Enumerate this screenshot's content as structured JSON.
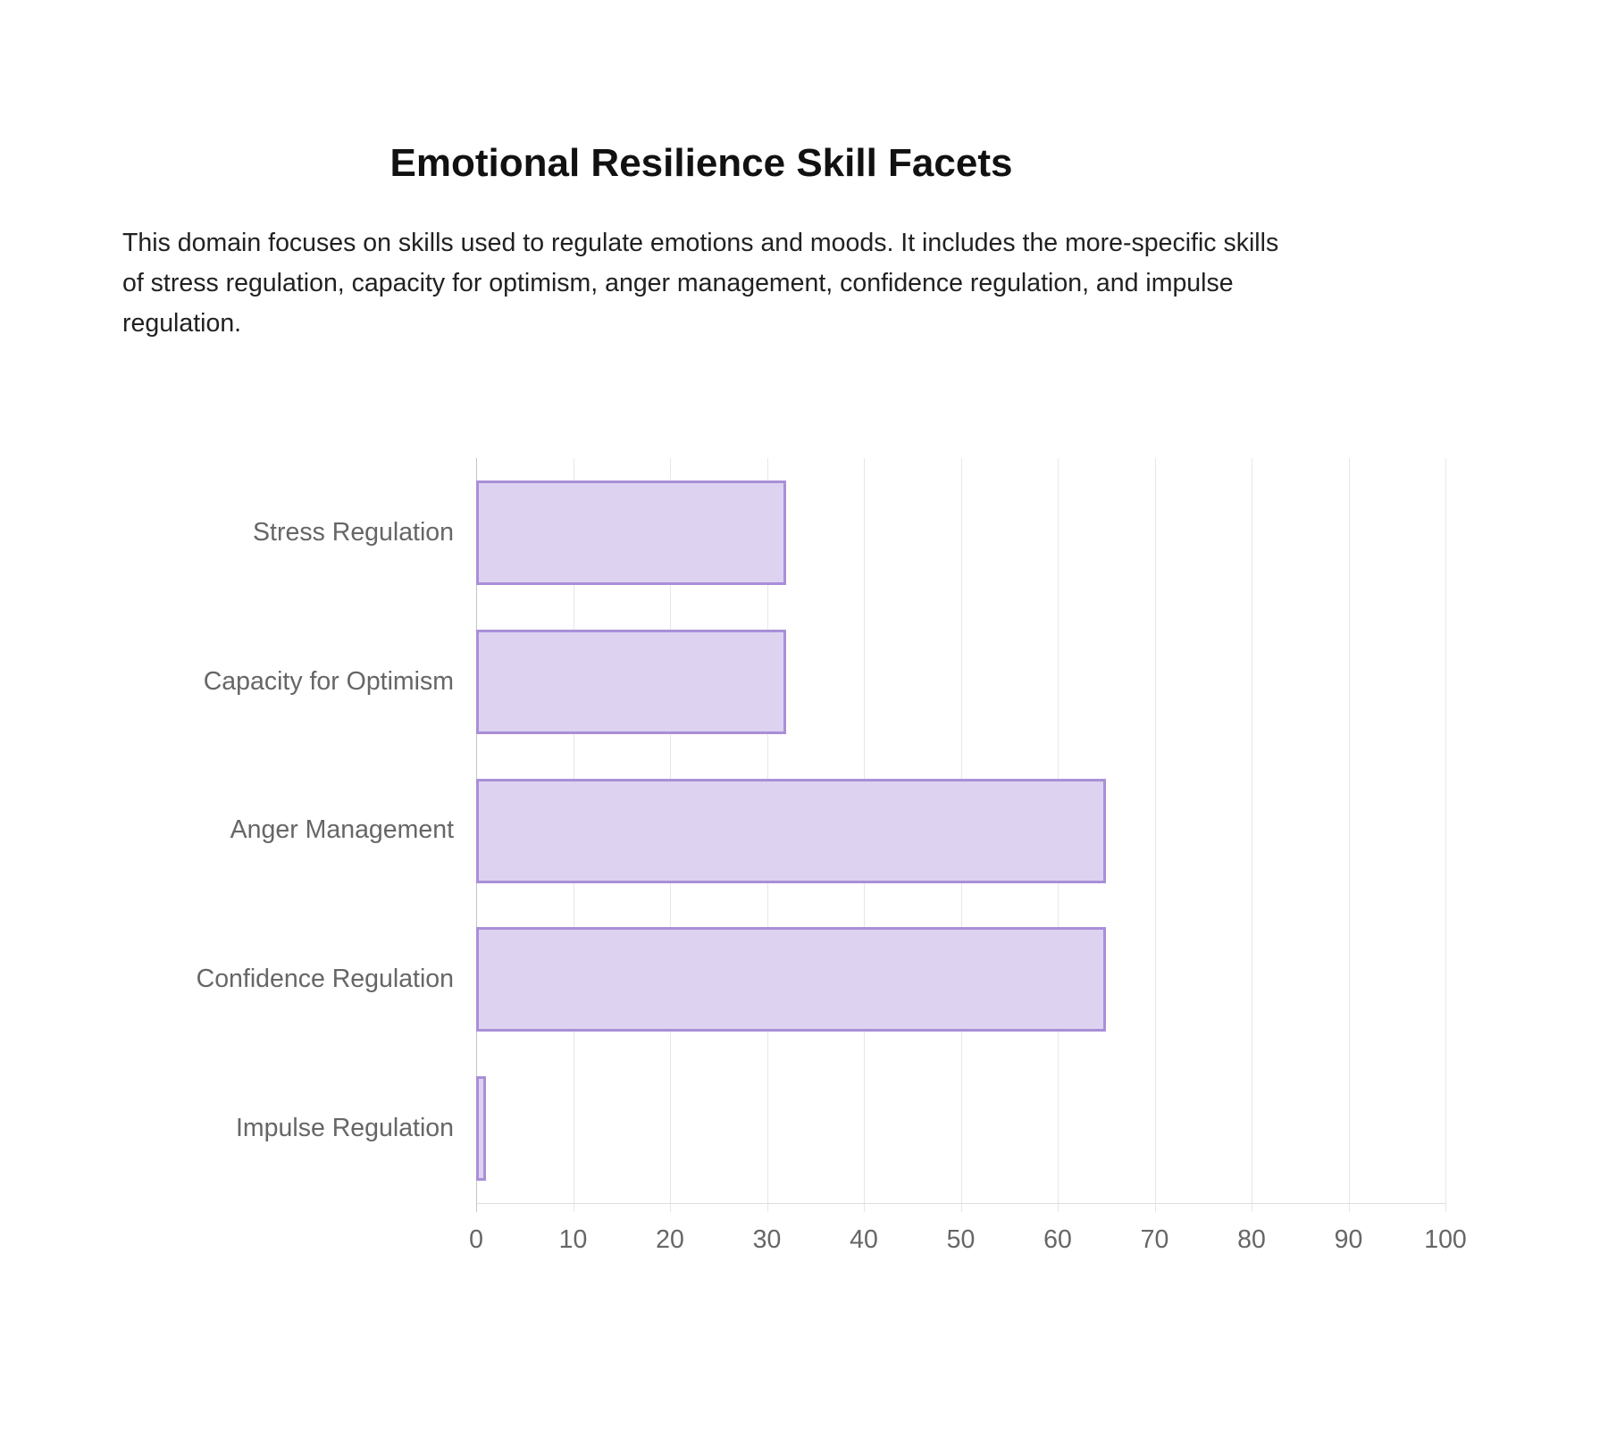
{
  "title": "Emotional Resilience Skill Facets",
  "description": "This domain focuses on skills used to regulate emotions and moods. It includes the more-specific skills of stress regulation, capacity for optimism, anger management, confidence regulation, and impulse regulation.",
  "chart_data": {
    "type": "bar",
    "orientation": "horizontal",
    "title": "Emotional Resilience Skill Facets",
    "categories": [
      "Stress Regulation",
      "Capacity for Optimism",
      "Anger Management",
      "Confidence Regulation",
      "Impulse Regulation"
    ],
    "values": [
      32,
      32,
      65,
      65,
      1
    ],
    "xlabel": "",
    "ylabel": "",
    "xlim": [
      0,
      100
    ],
    "x_ticks": [
      0,
      10,
      20,
      30,
      40,
      50,
      60,
      70,
      80,
      90,
      100
    ],
    "grid": true,
    "legend": "none",
    "colors": {
      "bar_fill": "#ddd3f0",
      "bar_border": "#a98fd8",
      "grid_line": "#e7e7e7",
      "zero_line": "#c4c4c4",
      "axis_line": "#dcdcdc",
      "label_text": "#666666",
      "tick_text": "#666666",
      "title_text": "#111111",
      "body_text": "#212121"
    }
  }
}
